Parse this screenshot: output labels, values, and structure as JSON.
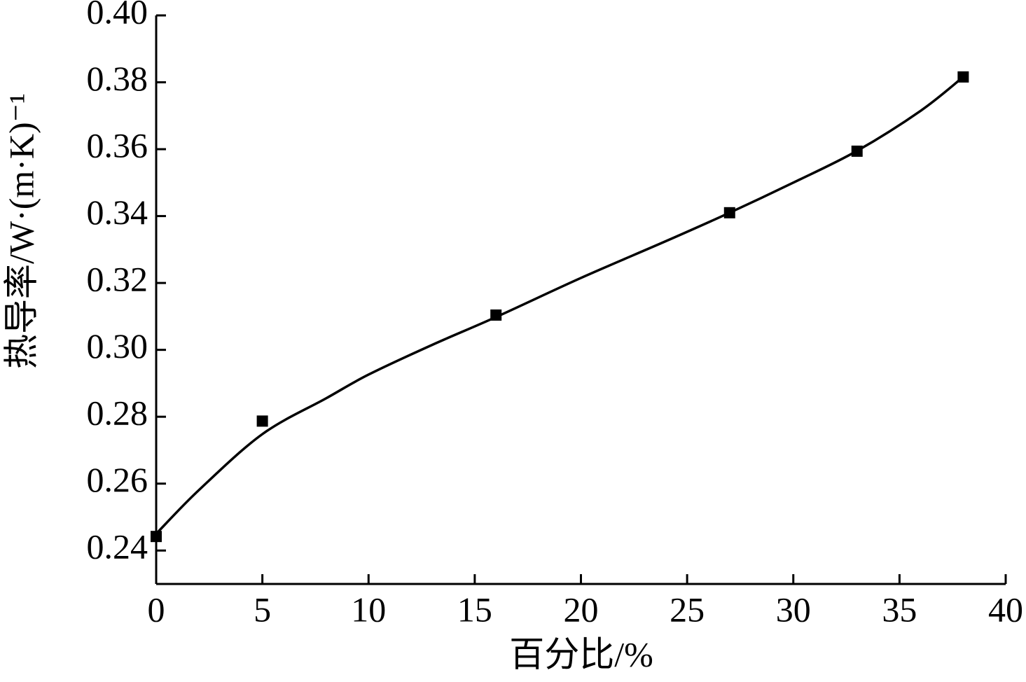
{
  "chart_data": {
    "type": "scatter",
    "x_label": "百分比/%",
    "y_label": "热导率/W·(m·K)⁻¹",
    "xlim": [
      0,
      40
    ],
    "xticks": [
      0,
      5,
      10,
      15,
      20,
      25,
      30,
      35,
      40
    ],
    "ylim": [
      0.23,
      0.4
    ],
    "yticks": [
      {
        "value": 0.24,
        "label": "0.24"
      },
      {
        "value": 0.26,
        "label": "0.26"
      },
      {
        "value": 0.28,
        "label": "0.28"
      },
      {
        "value": 0.3,
        "label": "0.30"
      },
      {
        "value": 0.32,
        "label": "0.32"
      },
      {
        "value": 0.34,
        "label": "0.34"
      },
      {
        "value": 0.36,
        "label": "0.36"
      },
      {
        "value": 0.38,
        "label": "0.38"
      },
      {
        "value": 0.4,
        "label": "0.40"
      }
    ],
    "grid": false,
    "series": [
      {
        "style": "marker",
        "color": "#000000",
        "x": [
          0,
          5,
          16,
          27,
          33,
          38
        ],
        "values": [
          0.2442,
          0.2787,
          0.3104,
          0.341,
          0.3594,
          0.3816
        ]
      },
      {
        "style": "line",
        "color": "#000000",
        "x": [
          0,
          2,
          5,
          8,
          10,
          13,
          16,
          20,
          24,
          27,
          30,
          33,
          36,
          38
        ],
        "values": [
          0.245,
          0.258,
          0.2748,
          0.2855,
          0.2926,
          0.3015,
          0.3098,
          0.3215,
          0.3325,
          0.341,
          0.35,
          0.3595,
          0.3715,
          0.3816
        ]
      }
    ]
  }
}
